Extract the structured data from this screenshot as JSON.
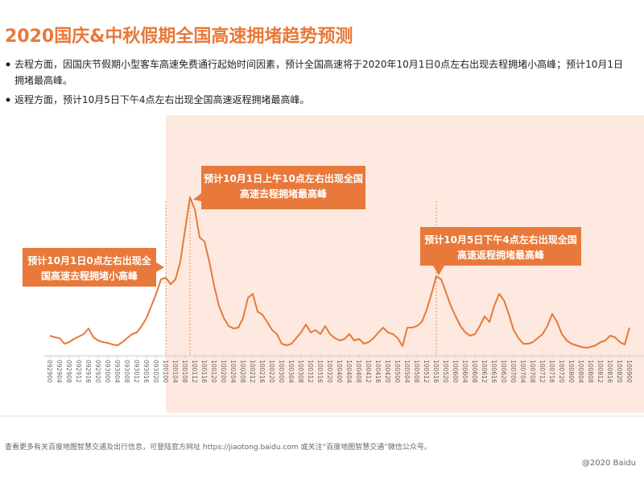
{
  "header": {
    "title": "2020国庆&中秋假期全国高速拥堵趋势预测",
    "bullets": [
      [
        "去程方面，因国庆节假期小型客车高速免费通行起始时间因素，预计全国高速将于2020年10月1日0点左右出现去程拥堵小高峰；预计10月1日",
        "拥堵最高峰。"
      ],
      [
        "返程方面，预计10月5日下午4点左右出现全国高速返程拥堵最高峰。"
      ]
    ]
  },
  "chart_data": {
    "type": "line",
    "color": "#e8793a",
    "categories": [
      "092900",
      null,
      "092904",
      null,
      "092908",
      null,
      "092912",
      null,
      "092916",
      null,
      "092920",
      null,
      "093000",
      null,
      "093004",
      null,
      "093008",
      null,
      "093012",
      null,
      "093016",
      null,
      "093020",
      null,
      "100100",
      null,
      "100104",
      null,
      "100108",
      null,
      "100112",
      null,
      "100116",
      null,
      "100120",
      null,
      "100200",
      null,
      "100204",
      null,
      "100208",
      null,
      "100212",
      null,
      "100216",
      null,
      "100220",
      null,
      "100300",
      null,
      "100304",
      null,
      "100308",
      null,
      "100312",
      null,
      "100316",
      null,
      "100320",
      null,
      "100400",
      null,
      "100404",
      null,
      "100408",
      null,
      "100412",
      null,
      "100416",
      null,
      "100420",
      null,
      "100500",
      null,
      "100504",
      null,
      "100508",
      null,
      "100512",
      null,
      "100516",
      null,
      "100520",
      null,
      "100600",
      null,
      "100604",
      null,
      "100608",
      null,
      "100612",
      null,
      "100616",
      null,
      "100620",
      null,
      "100700",
      null,
      "100704",
      null,
      "100708",
      null,
      "100712",
      null,
      "100716",
      null,
      "100720",
      null,
      "100800",
      null,
      "100804",
      null,
      "100808",
      null,
      "100812",
      null,
      "100816",
      null,
      "100820",
      null,
      "100900"
    ],
    "values": [
      23,
      21,
      20,
      13,
      15,
      19,
      22,
      25,
      32,
      21,
      17,
      15,
      14,
      12,
      11,
      15,
      20,
      25,
      27,
      35,
      45,
      60,
      75,
      93,
      95,
      87,
      93,
      115,
      155,
      195,
      180,
      145,
      140,
      115,
      85,
      60,
      45,
      35,
      32,
      33,
      45,
      70,
      75,
      53,
      49,
      40,
      30,
      25,
      13,
      11,
      13,
      20,
      27,
      37,
      27,
      30,
      25,
      35,
      25,
      20,
      17,
      19,
      25,
      17,
      19,
      13,
      15,
      20,
      27,
      33,
      27,
      25,
      20,
      10,
      33,
      33,
      35,
      40,
      55,
      75,
      97,
      93,
      77,
      60,
      47,
      35,
      27,
      23,
      25,
      35,
      47,
      40,
      60,
      75,
      67,
      50,
      30,
      20,
      13,
      13,
      15,
      20,
      25,
      35,
      50,
      40,
      25,
      17,
      13,
      11,
      9,
      8,
      9,
      11,
      15,
      17,
      23,
      21,
      15,
      12,
      33
    ],
    "ylim": [
      0,
      210
    ],
    "annotations": [
      [
        "预计10月1日0点左右出现全",
        "国高速去程拥堵小高峰"
      ],
      [
        "预计10月1日上午10点左右出现全国",
        "高速去程拥堵最高峰"
      ],
      [
        "预计10月5日下午4点左右出现全国",
        "高速返程拥堵最高峰"
      ]
    ]
  },
  "footer": {
    "note": "查看更多有关百度地图智慧交通及出行信息，可登陆官方网址 https://jiaotong.baidu.com 或关注“百度地图智慧交通”微信公众号。",
    "copyright": "@2020 Baidu"
  }
}
